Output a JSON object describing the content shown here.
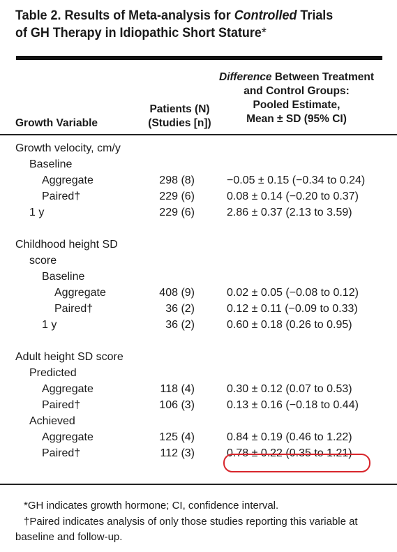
{
  "title": {
    "prefix": "Table 2. Results of Meta-analysis for ",
    "italic": "Controlled",
    "rest": " Trials",
    "line2": "of GH Therapy in Idiopathic Short Stature",
    "mark": "*"
  },
  "headers": {
    "col1": "Growth Variable",
    "col2_line1": "Patients (N)",
    "col2_line2": "(Studies [n])",
    "col3_line1_italic": "Difference",
    "col3_line1_rest": " Between Treatment",
    "col3_line2": "and Control Groups:",
    "col3_line3": "Pooled Estimate,",
    "col3_line4": "Mean ± SD (95% CI)"
  },
  "rows": [
    {
      "label": "Growth velocity, cm/y",
      "indent": 0,
      "patients": "",
      "estimate": ""
    },
    {
      "label": "Baseline",
      "indent": 1,
      "patients": "",
      "estimate": ""
    },
    {
      "label": "Aggregate",
      "indent": 2,
      "patients": "298 (8)",
      "estimate": "−0.05 ± 0.15 (−0.34 to 0.24)"
    },
    {
      "label": "Paired†",
      "indent": 2,
      "patients": "229 (6)",
      "estimate": "0.08 ± 0.14 (−0.20 to 0.37)"
    },
    {
      "label": "1 y",
      "indent": 1,
      "patients": "229 (6)",
      "estimate": "2.86 ± 0.37 (2.13 to 3.59)"
    },
    {
      "gap": true
    },
    {
      "label": "Childhood height SD",
      "indent": 0,
      "patients": "",
      "estimate": ""
    },
    {
      "label": "score",
      "indent": 1,
      "patients": "",
      "estimate": ""
    },
    {
      "label": "Baseline",
      "indent": 2,
      "patients": "",
      "estimate": ""
    },
    {
      "label": "Aggregate",
      "indent": 3,
      "patients": "408 (9)",
      "estimate": "0.02 ± 0.05 (−0.08 to 0.12)"
    },
    {
      "label": "Paired†",
      "indent": 3,
      "patients": "36 (2)",
      "estimate": "0.12 ± 0.11 (−0.09 to 0.33)"
    },
    {
      "label": "1 y",
      "indent": 2,
      "patients": "36 (2)",
      "estimate": "0.60 ± 0.18 (0.26 to 0.95)"
    },
    {
      "gap": true
    },
    {
      "label": "Adult height SD score",
      "indent": 0,
      "patients": "",
      "estimate": ""
    },
    {
      "label": "Predicted",
      "indent": 1,
      "patients": "",
      "estimate": ""
    },
    {
      "label": "Aggregate",
      "indent": 2,
      "patients": "118 (4)",
      "estimate": "0.30 ± 0.12 (0.07 to 0.53)"
    },
    {
      "label": "Paired†",
      "indent": 2,
      "patients": "106 (3)",
      "estimate": "0.13 ± 0.16 (−0.18 to 0.44)"
    },
    {
      "label": "Achieved",
      "indent": 1,
      "patients": "",
      "estimate": ""
    },
    {
      "label": "Aggregate",
      "indent": 2,
      "patients": "125 (4)",
      "estimate": "0.84 ± 0.19 (0.46 to 1.22)"
    },
    {
      "label": "Paired†",
      "indent": 2,
      "patients": "112 (3)",
      "estimate": "0.78 ± 0.22 (0.35 to 1.21)",
      "highlight": true
    }
  ],
  "highlight_color": "#d8262c",
  "footnotes": {
    "note1": "*GH indicates growth hormone; CI, confidence interval.",
    "note2_line1": "†Paired indicates analysis of only those studies reporting this variable at",
    "note2_line2": "baseline and follow-up."
  }
}
